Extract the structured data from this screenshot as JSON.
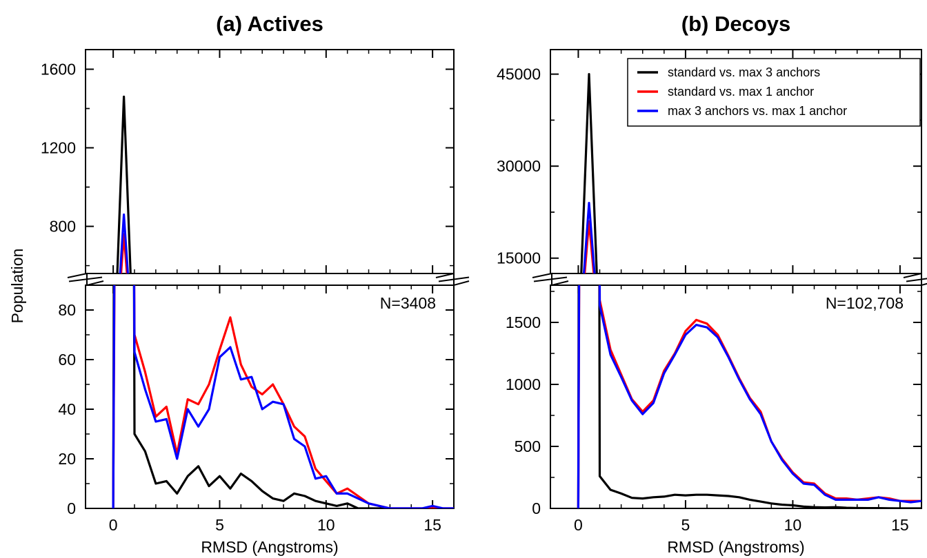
{
  "figure": {
    "ylabel": "Population"
  },
  "chart_data": [
    {
      "type": "line",
      "title": "(a) Actives",
      "xlabel": "RMSD (Angstroms)",
      "ylabel": "Population",
      "annotation": "N=3408",
      "xlim": [
        -1.3,
        16
      ],
      "broken_y_axis": true,
      "ylim_lower": [
        0,
        90
      ],
      "ylim_upper": [
        560,
        1700
      ],
      "xticks": [
        0,
        5,
        10,
        15
      ],
      "yticks_lower": [
        0,
        20,
        40,
        60,
        80
      ],
      "yticks_upper": [
        800,
        1200,
        1600
      ],
      "grid": false,
      "x": [
        0,
        0.5,
        1,
        1.5,
        2,
        2.5,
        3,
        3.5,
        4,
        4.5,
        5,
        5.5,
        6,
        6.5,
        7,
        7.5,
        8,
        8.5,
        9,
        9.5,
        10,
        10.5,
        11,
        11.5,
        12,
        12.5,
        13,
        13.5,
        14,
        14.5,
        15,
        15.5,
        16
      ],
      "series": [
        {
          "name": "standard vs. max 3 anchors",
          "color": "#000000",
          "values": [
            0,
            1460,
            30,
            23,
            10,
            11,
            6,
            13,
            17,
            9,
            13,
            8,
            14,
            11,
            7,
            4,
            3,
            6,
            5,
            3,
            2,
            1,
            2,
            0,
            0,
            0,
            0,
            0,
            0,
            0,
            0,
            0,
            0
          ]
        },
        {
          "name": "standard vs. max 1 anchor",
          "color": "#ff0000",
          "values": [
            0,
            760,
            70,
            55,
            37,
            41,
            22,
            44,
            42,
            50,
            64,
            77,
            58,
            49,
            46,
            50,
            42,
            33,
            29,
            16,
            11,
            6,
            8,
            5,
            2,
            1,
            0,
            0,
            0,
            0,
            0,
            0,
            0
          ]
        },
        {
          "name": "max 3 anchors vs. max 1 anchor",
          "color": "#0000ff",
          "values": [
            0,
            860,
            63,
            48,
            35,
            36,
            20,
            40,
            33,
            40,
            61,
            65,
            52,
            53,
            40,
            43,
            42,
            28,
            25,
            12,
            13,
            6,
            6,
            4,
            2,
            1,
            0,
            0,
            0,
            0,
            1,
            0,
            0
          ]
        }
      ]
    },
    {
      "type": "line",
      "title": "(b) Decoys",
      "xlabel": "RMSD (Angstroms)",
      "ylabel": "Population",
      "annotation": "N=102,708",
      "xlim": [
        -1.3,
        16
      ],
      "broken_y_axis": true,
      "ylim_lower": [
        0,
        1800
      ],
      "ylim_upper": [
        12500,
        49000
      ],
      "xticks": [
        0,
        5,
        10,
        15
      ],
      "yticks_lower": [
        0,
        500,
        1000,
        1500
      ],
      "yticks_upper": [
        15000,
        30000,
        45000
      ],
      "grid": false,
      "legend": {
        "position": "top-right",
        "entries": [
          "standard vs. max 3 anchors",
          "standard vs. max 1 anchor",
          "max 3 anchors vs. max 1 anchor"
        ]
      },
      "x": [
        0,
        0.5,
        1,
        1.5,
        2,
        2.5,
        3,
        3.5,
        4,
        4.5,
        5,
        5.5,
        6,
        6.5,
        7,
        7.5,
        8,
        8.5,
        9,
        9.5,
        10,
        10.5,
        11,
        11.5,
        12,
        12.5,
        13,
        13.5,
        14,
        14.5,
        15,
        15.5,
        16
      ],
      "series": [
        {
          "name": "standard vs. max 3 anchors",
          "color": "#000000",
          "values": [
            0,
            45000,
            260,
            150,
            120,
            85,
            80,
            90,
            95,
            110,
            105,
            110,
            110,
            105,
            100,
            90,
            70,
            55,
            40,
            30,
            25,
            15,
            10,
            8,
            10,
            5,
            3,
            2,
            2,
            1,
            0,
            0,
            0
          ]
        },
        {
          "name": "standard vs. max 1 anchor",
          "color": "#ff0000",
          "values": [
            0,
            21000,
            1680,
            1280,
            1080,
            880,
            780,
            870,
            1110,
            1250,
            1430,
            1520,
            1490,
            1400,
            1230,
            1050,
            890,
            780,
            540,
            400,
            290,
            210,
            200,
            120,
            80,
            80,
            70,
            80,
            90,
            80,
            60,
            60,
            60
          ]
        },
        {
          "name": "max 3 anchors vs. max 1 anchor",
          "color": "#0000ff",
          "values": [
            0,
            24000,
            1640,
            1240,
            1060,
            870,
            760,
            850,
            1090,
            1240,
            1400,
            1480,
            1460,
            1380,
            1220,
            1040,
            880,
            760,
            540,
            390,
            280,
            200,
            190,
            110,
            70,
            70,
            70,
            70,
            90,
            70,
            60,
            50,
            60
          ]
        }
      ]
    }
  ]
}
